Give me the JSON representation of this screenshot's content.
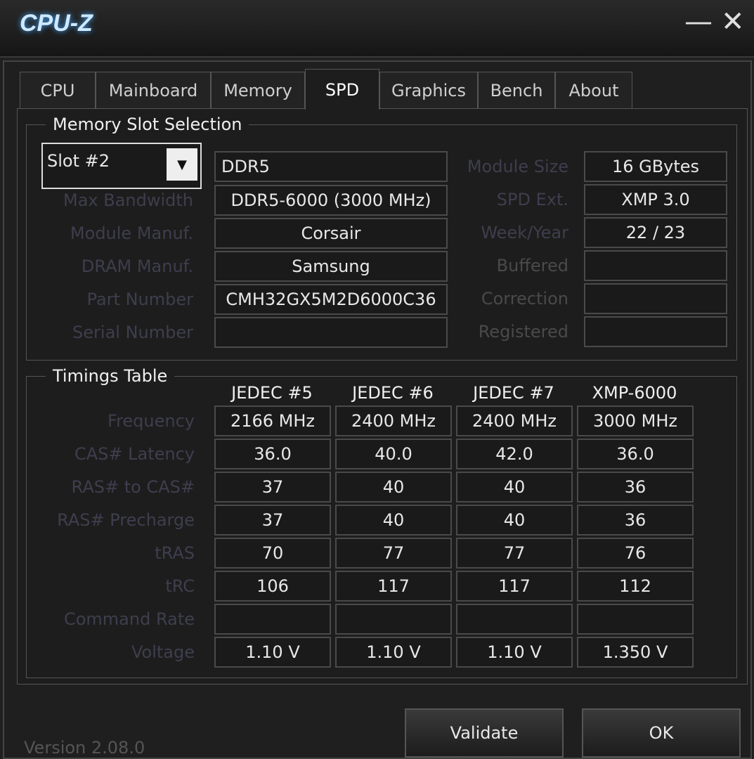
{
  "window": {
    "title": "CPU-Z",
    "minimize": "—",
    "close": "✕"
  },
  "tabs": [
    "CPU",
    "Mainboard",
    "Memory",
    "SPD",
    "Graphics",
    "Bench",
    "About"
  ],
  "active_tab": "SPD",
  "slot_group": {
    "title": "Memory Slot Selection",
    "slot": "Slot #2",
    "type": "DDR5",
    "left": [
      {
        "label": "Max Bandwidth",
        "value": "DDR5-6000 (3000 MHz)"
      },
      {
        "label": "Module Manuf.",
        "value": "Corsair"
      },
      {
        "label": "DRAM Manuf.",
        "value": "Samsung"
      },
      {
        "label": "Part Number",
        "value": "CMH32GX5M2D6000C36"
      },
      {
        "label": "Serial Number",
        "value": ""
      }
    ],
    "right": [
      {
        "label": "Module Size",
        "value": "16 GBytes"
      },
      {
        "label": "SPD Ext.",
        "value": "XMP 3.0"
      },
      {
        "label": "Week/Year",
        "value": "22 / 23"
      },
      {
        "label": "Buffered",
        "value": ""
      },
      {
        "label": "Correction",
        "value": ""
      },
      {
        "label": "Registered",
        "value": ""
      }
    ]
  },
  "timings": {
    "title": "Timings Table",
    "columns": [
      "JEDEC #5",
      "JEDEC #6",
      "JEDEC #7",
      "XMP-6000"
    ],
    "rows": [
      {
        "label": "Frequency",
        "values": [
          "2166 MHz",
          "2400 MHz",
          "2400 MHz",
          "3000 MHz"
        ]
      },
      {
        "label": "CAS# Latency",
        "values": [
          "36.0",
          "40.0",
          "42.0",
          "36.0"
        ]
      },
      {
        "label": "RAS# to CAS#",
        "values": [
          "37",
          "40",
          "40",
          "36"
        ]
      },
      {
        "label": "RAS# Precharge",
        "values": [
          "37",
          "40",
          "40",
          "36"
        ]
      },
      {
        "label": "tRAS",
        "values": [
          "70",
          "77",
          "77",
          "76"
        ]
      },
      {
        "label": "tRC",
        "values": [
          "106",
          "117",
          "117",
          "112"
        ]
      },
      {
        "label": "Command Rate",
        "values": [
          "",
          "",
          "",
          ""
        ]
      },
      {
        "label": "Voltage",
        "values": [
          "1.10 V",
          "1.10 V",
          "1.10 V",
          "1.350 V"
        ]
      }
    ]
  },
  "footer": {
    "version": "Version 2.08.0",
    "validate": "Validate",
    "ok": "OK"
  }
}
